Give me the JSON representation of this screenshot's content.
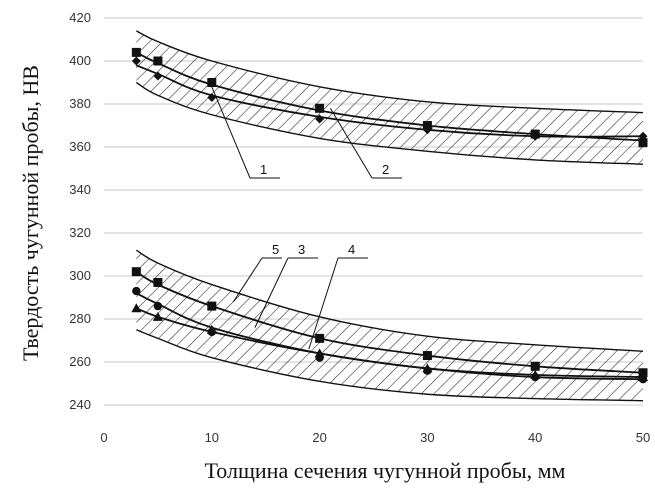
{
  "chart_data": {
    "type": "line",
    "xlabel": "Толщина сечения  чугунной пробы, мм",
    "ylabel": "Твердость чугунной пробы, НВ",
    "xlim": [
      0,
      50
    ],
    "ylim": [
      240,
      420
    ],
    "xticks": [
      "0",
      "10",
      "20",
      "30",
      "40",
      "50"
    ],
    "yticks": [
      "240",
      "260",
      "280",
      "300",
      "320",
      "340",
      "360",
      "380",
      "400",
      "420"
    ],
    "xtick_values": [
      0,
      10,
      20,
      30,
      40,
      50
    ],
    "ytick_values": [
      240,
      260,
      280,
      300,
      320,
      340,
      360,
      380,
      400,
      420
    ],
    "grid": "horizontal",
    "colors": {
      "line": "#111111",
      "grid": "#c8c8c8",
      "hatch": "#222222"
    },
    "bands": [
      {
        "x": [
          3,
          5,
          10,
          20,
          30,
          40,
          50
        ],
        "upper": [
          414,
          409,
          400,
          388,
          381,
          378,
          376
        ],
        "lower": [
          390,
          384,
          375,
          364,
          358,
          354,
          352
        ]
      },
      {
        "x": [
          3,
          5,
          10,
          20,
          30,
          40,
          50
        ],
        "upper": [
          312,
          306,
          296,
          281,
          272,
          268,
          265
        ],
        "lower": [
          275,
          271,
          262,
          251,
          245,
          243,
          242
        ]
      }
    ],
    "series": [
      {
        "marker": "square",
        "x": [
          3,
          5,
          10,
          20,
          30,
          40,
          50
        ],
        "y": [
          404,
          400,
          390,
          378,
          370,
          366,
          362
        ],
        "curve": [
          404,
          399,
          389,
          377,
          370,
          366,
          363
        ]
      },
      {
        "marker": "diamond",
        "x": [
          3,
          5,
          10,
          20,
          30,
          40,
          50
        ],
        "y": [
          400,
          393,
          383,
          373,
          368,
          365,
          365
        ],
        "curve": [
          398,
          394,
          384,
          374,
          368,
          365,
          365
        ]
      },
      {
        "marker": "square",
        "x": [
          3,
          5,
          10,
          20,
          30,
          40,
          50
        ],
        "y": [
          302,
          297,
          286,
          271,
          263,
          258,
          255
        ],
        "curve": [
          302,
          296,
          286,
          271,
          263,
          258,
          255
        ]
      },
      {
        "marker": "circle",
        "x": [
          3,
          5,
          10,
          20,
          30,
          40,
          50
        ],
        "y": [
          293,
          286,
          274,
          262,
          256,
          253,
          252
        ],
        "curve": [
          292,
          287,
          276,
          264,
          257,
          253,
          252
        ]
      },
      {
        "marker": "triangle",
        "x": [
          3,
          5,
          10,
          20,
          30,
          40,
          50
        ],
        "y": [
          285,
          281,
          275,
          264,
          257,
          254,
          253
        ],
        "curve": [
          285,
          281,
          274,
          264,
          257,
          254,
          253
        ]
      }
    ],
    "annotations": [
      {
        "label": "1",
        "target": [
          10,
          388
        ]
      },
      {
        "label": "2",
        "target": [
          21,
          378
        ]
      },
      {
        "label": "3",
        "target": [
          14,
          276
        ]
      },
      {
        "label": "4",
        "target": [
          19,
          266
        ]
      },
      {
        "label": "5",
        "target": [
          12,
          288
        ]
      }
    ]
  }
}
